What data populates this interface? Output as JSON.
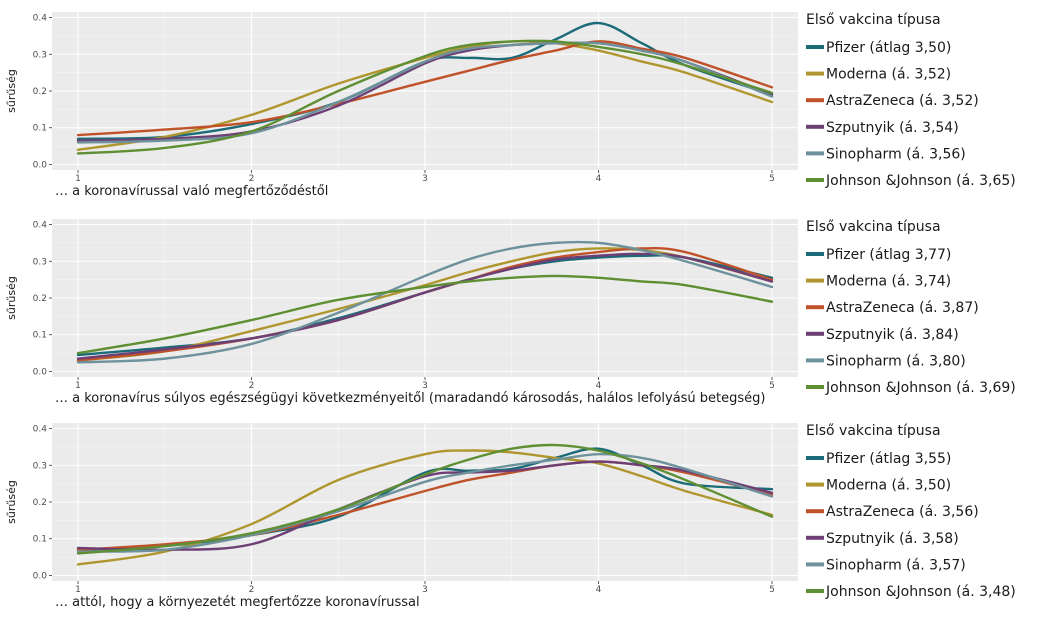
{
  "colors": {
    "panel_bg": "#EBEBEB",
    "grid": "#FFFFFF",
    "series": [
      "#1B6B78",
      "#B0962E",
      "#C0522A",
      "#6E3F75",
      "#6E929C",
      "#5E8F32"
    ]
  },
  "chart_data": [
    {
      "type": "line",
      "caption": "… a koronavírussal való megfertőződéstől",
      "ylabel": "sűrűség",
      "xlim": [
        0.85,
        5.15
      ],
      "ylim": [
        -0.015,
        0.415
      ],
      "x_ticks": [
        "1",
        "2",
        "3",
        "4",
        "5"
      ],
      "y_ticks": [
        "0.0",
        "0.1",
        "0.2",
        "0.3",
        "0.4"
      ],
      "legend_title": "Első vakcina típusa",
      "legend_position": "right",
      "x": [
        1,
        1.5,
        2,
        2.5,
        3,
        3.25,
        3.5,
        3.75,
        4,
        4.25,
        4.5,
        5
      ],
      "series": [
        {
          "name": "Pfizer (átlag 3,50)",
          "values": [
            0.07,
            0.075,
            0.11,
            0.17,
            0.28,
            0.29,
            0.29,
            0.34,
            0.385,
            0.33,
            0.27,
            0.19
          ]
        },
        {
          "name": "Moderna (á. 3,52)",
          "values": [
            0.04,
            0.075,
            0.135,
            0.22,
            0.29,
            0.32,
            0.335,
            0.33,
            0.31,
            0.28,
            0.25,
            0.17
          ]
        },
        {
          "name": "AstraZeneca (á. 3,52)",
          "values": [
            0.08,
            0.095,
            0.115,
            0.165,
            0.225,
            0.255,
            0.285,
            0.31,
            0.335,
            0.315,
            0.29,
            0.21
          ]
        },
        {
          "name": "Szputnyik (á. 3,54)",
          "values": [
            0.065,
            0.07,
            0.09,
            0.16,
            0.275,
            0.31,
            0.325,
            0.33,
            0.33,
            0.31,
            0.28,
            0.19
          ]
        },
        {
          "name": "Sinopharm (á. 3,56)",
          "values": [
            0.06,
            0.065,
            0.085,
            0.17,
            0.28,
            0.315,
            0.325,
            0.33,
            0.33,
            0.31,
            0.28,
            0.185
          ]
        },
        {
          "name": "Johnson &Johnson (á. 3,65)",
          "values": [
            0.03,
            0.045,
            0.09,
            0.2,
            0.295,
            0.325,
            0.335,
            0.335,
            0.32,
            0.3,
            0.27,
            0.195
          ]
        }
      ]
    },
    {
      "type": "line",
      "caption": "… a koronavírus súlyos egészségügyi következményeitől (maradandó károsodás, halálos lefolyású betegség)",
      "ylabel": "sűrűség",
      "xlim": [
        0.85,
        5.15
      ],
      "ylim": [
        -0.015,
        0.415
      ],
      "x_ticks": [
        "1",
        "2",
        "3",
        "4",
        "5"
      ],
      "y_ticks": [
        "0.0",
        "0.1",
        "0.2",
        "0.3",
        "0.4"
      ],
      "legend_title": "Első vakcina típusa",
      "legend_position": "right",
      "x": [
        1,
        1.5,
        2,
        2.5,
        3,
        3.25,
        3.5,
        3.75,
        4,
        4.25,
        4.5,
        5
      ],
      "series": [
        {
          "name": "Pfizer (átlag 3,77)",
          "values": [
            0.045,
            0.065,
            0.09,
            0.145,
            0.215,
            0.25,
            0.28,
            0.3,
            0.31,
            0.315,
            0.31,
            0.255
          ]
        },
        {
          "name": "Moderna (á. 3,74)",
          "values": [
            0.03,
            0.055,
            0.11,
            0.17,
            0.235,
            0.27,
            0.3,
            0.325,
            0.335,
            0.33,
            0.31,
            0.245
          ]
        },
        {
          "name": "AstraZeneca (á. 3,87)",
          "values": [
            0.03,
            0.055,
            0.09,
            0.14,
            0.215,
            0.25,
            0.285,
            0.31,
            0.325,
            0.335,
            0.325,
            0.25
          ]
        },
        {
          "name": "Szputnyik (á. 3,84)",
          "values": [
            0.035,
            0.06,
            0.09,
            0.14,
            0.215,
            0.25,
            0.28,
            0.305,
            0.315,
            0.32,
            0.31,
            0.245
          ]
        },
        {
          "name": "Sinopharm (á. 3,80)",
          "values": [
            0.025,
            0.035,
            0.075,
            0.16,
            0.26,
            0.305,
            0.335,
            0.35,
            0.35,
            0.33,
            0.3,
            0.23
          ]
        },
        {
          "name": "Johnson &Johnson (á. 3,69)",
          "values": [
            0.05,
            0.09,
            0.14,
            0.195,
            0.23,
            0.245,
            0.255,
            0.26,
            0.255,
            0.245,
            0.235,
            0.19
          ]
        }
      ]
    },
    {
      "type": "line",
      "caption": "… attól, hogy a környezetét megfertőzze koronavírussal",
      "ylabel": "sűrűség",
      "xlim": [
        0.85,
        5.15
      ],
      "ylim": [
        -0.015,
        0.415
      ],
      "x_ticks": [
        "1",
        "2",
        "3",
        "4",
        "5"
      ],
      "y_ticks": [
        "0.0",
        "0.1",
        "0.2",
        "0.3",
        "0.4"
      ],
      "legend_title": "Első vakcina típusa",
      "legend_position": "right",
      "x": [
        1,
        1.5,
        2,
        2.5,
        3,
        3.25,
        3.5,
        3.75,
        4,
        4.25,
        4.5,
        5
      ],
      "series": [
        {
          "name": "Pfizer (átlag 3,55)",
          "values": [
            0.07,
            0.08,
            0.11,
            0.16,
            0.28,
            0.285,
            0.29,
            0.32,
            0.345,
            0.3,
            0.25,
            0.235
          ]
        },
        {
          "name": "Moderna (á. 3,50)",
          "values": [
            0.03,
            0.065,
            0.14,
            0.26,
            0.33,
            0.34,
            0.335,
            0.32,
            0.305,
            0.27,
            0.23,
            0.165
          ]
        },
        {
          "name": "AstraZeneca (á. 3,56)",
          "values": [
            0.07,
            0.085,
            0.11,
            0.165,
            0.23,
            0.26,
            0.28,
            0.3,
            0.31,
            0.3,
            0.28,
            0.22
          ]
        },
        {
          "name": "Szputnyik (á. 3,58)",
          "values": [
            0.075,
            0.07,
            0.085,
            0.18,
            0.27,
            0.28,
            0.285,
            0.3,
            0.31,
            0.3,
            0.285,
            0.225
          ]
        },
        {
          "name": "Sinopharm (á. 3,57)",
          "values": [
            0.065,
            0.07,
            0.11,
            0.175,
            0.255,
            0.28,
            0.3,
            0.315,
            0.33,
            0.32,
            0.29,
            0.215
          ]
        },
        {
          "name": "Johnson &Johnson (á. 3,48)",
          "values": [
            0.06,
            0.08,
            0.115,
            0.18,
            0.275,
            0.315,
            0.345,
            0.355,
            0.34,
            0.305,
            0.26,
            0.16
          ]
        }
      ]
    }
  ]
}
